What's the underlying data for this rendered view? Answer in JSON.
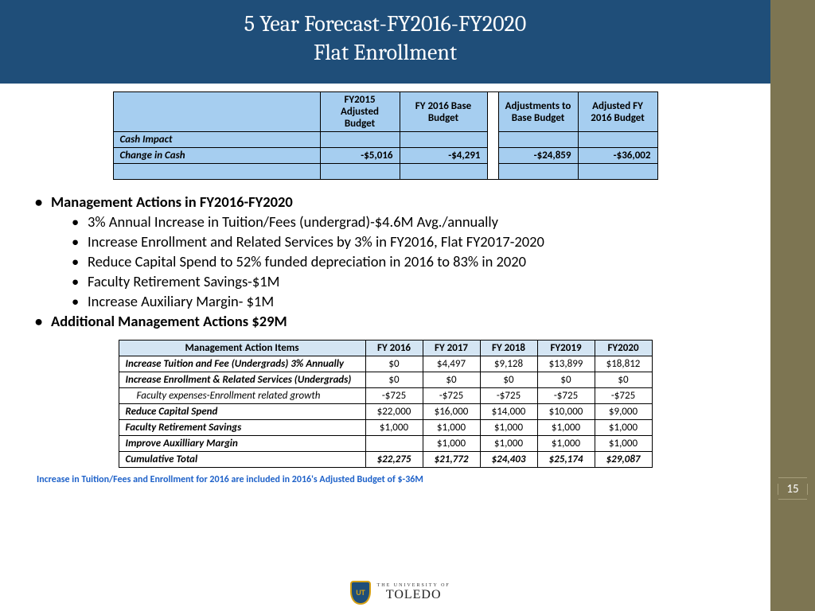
{
  "header": {
    "line1": "5 Year Forecast-FY2016-FY2020",
    "line2": "Flat Enrollment"
  },
  "page_number": "15",
  "cash_table": {
    "headers": [
      "",
      "FY2015 Adjusted Budget",
      "FY 2016 Base Budget",
      "Adjustments to Base Budget",
      "Adjusted FY 2016 Budget"
    ],
    "row1_label": "Cash Impact",
    "row2_label": "Change in Cash",
    "row2_vals": [
      "-$5,016",
      "-$4,291",
      "-$24,859",
      "-$36,002"
    ],
    "header_bg": "#a6cef0",
    "border_color": "#000000"
  },
  "bullets": {
    "top1": "Management Actions in FY2016-FY2020",
    "subs": [
      "3% Annual Increase in Tuition/Fees (undergrad)-$4.6M Avg./annually",
      "Increase Enrollment  and Related Services by 3% in FY2016, Flat FY2017-2020",
      "Reduce Capital Spend to 52% funded depreciation in 2016 to 83% in 2020",
      "Faculty Retirement Savings-$1M",
      "Increase Auxiliary Margin- $1M"
    ],
    "top2": "Additional Management Actions $29M"
  },
  "action_table": {
    "headers": [
      "Management Action Items",
      "FY 2016",
      "FY 2017",
      "FY 2018",
      "FY2019",
      "FY2020"
    ],
    "rows": [
      {
        "label": "Increase Tuition and Fee (Undergrads) 3% Annually",
        "indent": false,
        "vals": [
          "$0",
          "$4,497",
          "$9,128",
          "$13,899",
          "$18,812"
        ]
      },
      {
        "label": "Increase Enrollment & Related Services (Undergrads)",
        "indent": false,
        "vals": [
          "$0",
          "$0",
          "$0",
          "$0",
          "$0"
        ]
      },
      {
        "label": "Faculty expenses-Enrollment related growth",
        "indent": true,
        "vals": [
          "-$725",
          "-$725",
          "-$725",
          "-$725",
          "-$725"
        ]
      },
      {
        "label": "Reduce Capital Spend",
        "indent": false,
        "vals": [
          "$22,000",
          "$16,000",
          "$14,000",
          "$10,000",
          "$9,000"
        ]
      },
      {
        "label": "Faculty Retirement Savings",
        "indent": false,
        "vals": [
          "$1,000",
          "$1,000",
          "$1,000",
          "$1,000",
          "$1,000"
        ]
      },
      {
        "label": "Improve Auxilliary Margin",
        "indent": false,
        "vals": [
          "",
          "$1,000",
          "$1,000",
          "$1,000",
          "$1,000"
        ]
      }
    ],
    "total": {
      "label": "Cumulative Total",
      "vals": [
        "$22,275",
        "$21,772",
        "$24,403",
        "$25,174",
        "$29,087"
      ]
    },
    "header_bg": "#d4e5f3"
  },
  "footnote": "Increase in Tuition/Fees and Enrollment for 2016 are included in 2016's Adjusted Budget of $-36M",
  "logo": {
    "shield_text": "UT",
    "small": "THE UNIVERSITY OF",
    "big": "TOLEDO"
  },
  "colors": {
    "header_bg": "#1f4e79",
    "sidebar_bg": "#7d7552",
    "footnote_color": "#1f62c9"
  }
}
